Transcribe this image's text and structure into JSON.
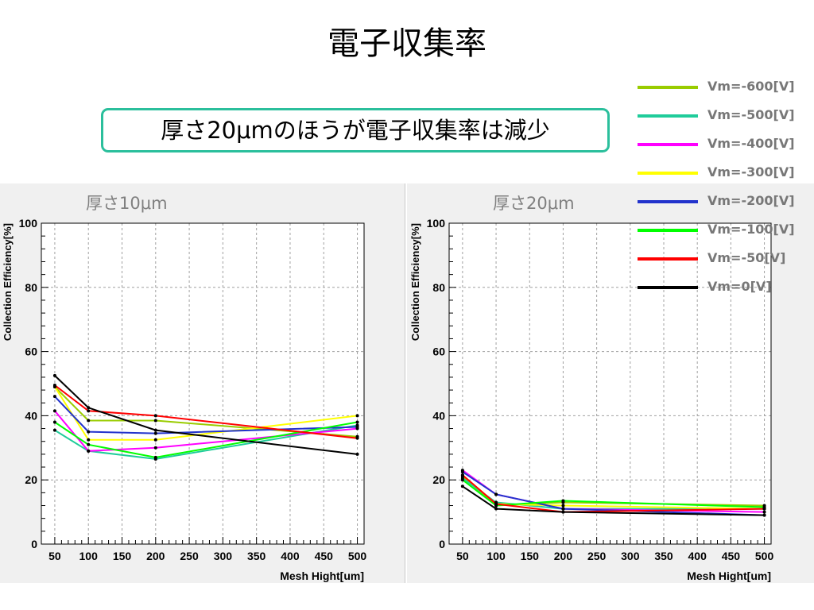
{
  "slide": {
    "title": "電子収集率",
    "callout": "厚さ20μmのほうが電子収集率は減少"
  },
  "legend": [
    {
      "label": "Vm=-600[V]",
      "color": "#99cc00"
    },
    {
      "label": "Vm=-500[V]",
      "color": "#1fcc9a"
    },
    {
      "label": "Vm=-400[V]",
      "color": "#ff00ff"
    },
    {
      "label": "Vm=-300[V]",
      "color": "#ffff00"
    },
    {
      "label": "Vm=-200[V]",
      "color": "#2233cc"
    },
    {
      "label": "Vm=-100[V]",
      "color": "#00ff00"
    },
    {
      "label": "Vm=-50[V]",
      "color": "#ff0000"
    },
    {
      "label": "Vm=0[V]",
      "color": "#000000"
    }
  ],
  "chart_data": [
    {
      "type": "line",
      "title": "厚さ10μm",
      "xlabel": "Mesh Hight[um]",
      "ylabel": "Collection Efficiency[%]",
      "xlim": [
        30,
        510
      ],
      "ylim": [
        0,
        100
      ],
      "xticks": [
        50,
        100,
        150,
        200,
        250,
        300,
        350,
        400,
        450,
        500
      ],
      "yticks": [
        0,
        20,
        40,
        60,
        80,
        100
      ],
      "grid": true,
      "x": [
        50,
        100,
        200,
        500
      ],
      "series": [
        {
          "name": "Vm=-600[V]",
          "color": "#99cc00",
          "values": [
            49,
            38.5,
            38.5,
            33.5
          ]
        },
        {
          "name": "Vm=-500[V]",
          "color": "#1fcc9a",
          "values": [
            35.5,
            29,
            26.5,
            37
          ]
        },
        {
          "name": "Vm=-400[V]",
          "color": "#ff00ff",
          "values": [
            41.5,
            29,
            30,
            36
          ]
        },
        {
          "name": "Vm=-300[V]",
          "color": "#ffff00",
          "values": [
            49,
            32.5,
            32.5,
            40
          ]
        },
        {
          "name": "Vm=-200[V]",
          "color": "#2233cc",
          "values": [
            46,
            35,
            34.5,
            36.5
          ]
        },
        {
          "name": "Vm=-100[V]",
          "color": "#00ff00",
          "values": [
            38,
            31,
            27,
            38
          ]
        },
        {
          "name": "Vm=-50[V]",
          "color": "#ff0000",
          "values": [
            49.5,
            41.5,
            40,
            33
          ]
        },
        {
          "name": "Vm=0[V]",
          "color": "#000000",
          "values": [
            52.5,
            42.5,
            35.5,
            28
          ]
        }
      ]
    },
    {
      "type": "line",
      "title": "厚さ20μm",
      "xlabel": "Mesh Hight[um]",
      "ylabel": "Collection Efficiency[%]",
      "xlim": [
        30,
        510
      ],
      "ylim": [
        0,
        100
      ],
      "xticks": [
        50,
        100,
        150,
        200,
        250,
        300,
        350,
        400,
        450,
        500
      ],
      "yticks": [
        0,
        20,
        40,
        60,
        80,
        100
      ],
      "grid": true,
      "x": [
        50,
        100,
        200,
        500
      ],
      "series": [
        {
          "name": "Vm=-600[V]",
          "color": "#99cc00",
          "values": [
            21,
            12,
            13,
            12
          ]
        },
        {
          "name": "Vm=-500[V]",
          "color": "#1fcc9a",
          "values": [
            20.5,
            13,
            11,
            11
          ]
        },
        {
          "name": "Vm=-400[V]",
          "color": "#ff00ff",
          "values": [
            23,
            15.5,
            11,
            10
          ]
        },
        {
          "name": "Vm=-300[V]",
          "color": "#ffff00",
          "values": [
            21.5,
            12.5,
            12,
            11
          ]
        },
        {
          "name": "Vm=-200[V]",
          "color": "#2233cc",
          "values": [
            22.5,
            15.5,
            11,
            9
          ]
        },
        {
          "name": "Vm=-100[V]",
          "color": "#00ff00",
          "values": [
            20,
            12,
            13.5,
            11.5
          ]
        },
        {
          "name": "Vm=-50[V]",
          "color": "#ff0000",
          "values": [
            21.5,
            12.5,
            10,
            11
          ]
        },
        {
          "name": "Vm=0[V]",
          "color": "#000000",
          "values": [
            18,
            11,
            10,
            9
          ]
        }
      ]
    }
  ]
}
